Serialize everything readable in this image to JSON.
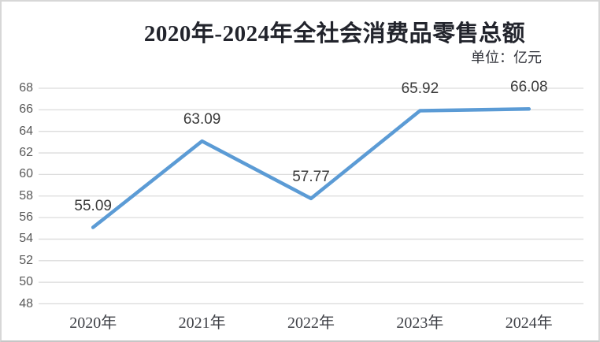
{
  "window": {
    "background": "#ffffff",
    "border_color": "#d7d7d7"
  },
  "chart_data": {
    "type": "line",
    "title": "2020年-2024年全社会消费品零售总额",
    "unit_label": "单位：亿元",
    "categories": [
      "2020年",
      "2021年",
      "2022年",
      "2023年",
      "2024年"
    ],
    "series": [
      {
        "values": [
          55.09,
          63.09,
          57.77,
          65.92,
          66.08
        ]
      }
    ],
    "data_labels": [
      "55.09",
      "63.09",
      "57.77",
      "65.92",
      "66.08"
    ],
    "xlabel": "",
    "ylabel": "",
    "ylim": [
      48,
      68
    ],
    "yticks": [
      48,
      50,
      52,
      54,
      56,
      58,
      60,
      62,
      64,
      66,
      68
    ],
    "grid": true,
    "legend_position": "none",
    "line_color": "#5b9bd5",
    "gridline_color": "#dcdcdc",
    "data_label_color": "#3a3a3a",
    "tick_label_color": "#595959",
    "x_label_color": "#3f4147",
    "title_color": "#22242c"
  }
}
